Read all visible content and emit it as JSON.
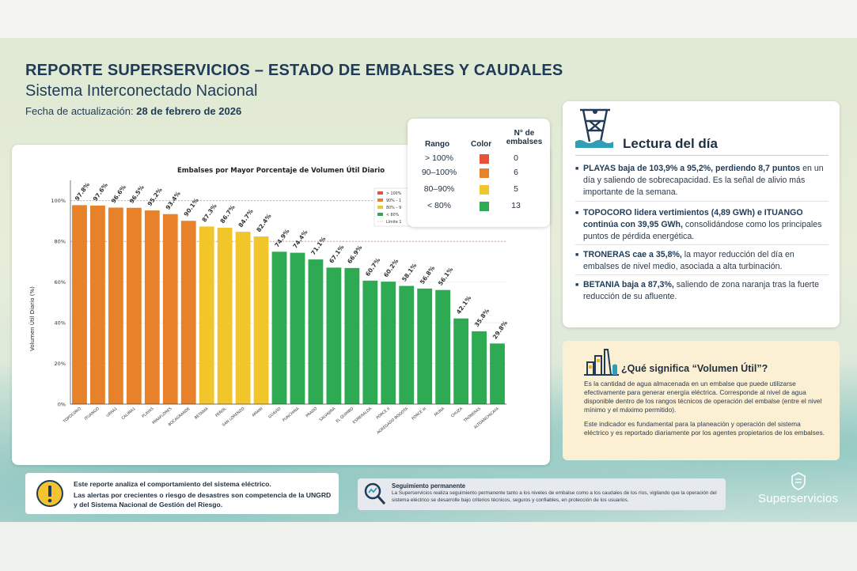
{
  "header": {
    "title": "REPORTE SUPERSERVICIOS – ESTADO DE EMBALSES Y CAUDALES",
    "subtitle": "Sistema Interconectado Nacional",
    "date_label": "Fecha de actualización:",
    "date_value": "28 de febrero de 2026"
  },
  "chart_data": {
    "type": "bar",
    "title": "Embalses por Mayor Porcentaje de Volumen Útil Diario",
    "ylabel": "Volumen Útil Diario (%)",
    "xlabel": "",
    "ylim": [
      0,
      110
    ],
    "yticks": [
      "0%",
      "20%",
      "40%",
      "60%",
      "80%",
      "100%"
    ],
    "reference_lines": [
      100,
      80
    ],
    "categories": [
      "TOPOCORO",
      "ITUANGO",
      "URRA1",
      "CALIMA1",
      "PLAYAS",
      "MIRAFLORES",
      "BOCAGRANDE",
      "BETANIA",
      "PEÑOL",
      "SAN LORENZO",
      "AMANI",
      "GUAVIO",
      "PUNCHINA",
      "PRADO",
      "SALVAJINA",
      "EL QUIMBO",
      "ESMERALDA",
      "PORCE II",
      "AGREGADO BOGOTA",
      "PORCE III",
      "MUNA",
      "CHUZA",
      "TRONERAS",
      "ALTOANCHICAYA"
    ],
    "values": [
      97.8,
      97.6,
      96.6,
      96.5,
      95.2,
      93.4,
      90.1,
      87.3,
      86.7,
      84.7,
      82.4,
      74.9,
      74.4,
      71.1,
      67.1,
      66.9,
      60.7,
      60.2,
      58.1,
      56.8,
      56.1,
      42.1,
      35.8,
      29.8
    ],
    "labels": [
      "97.8%",
      "97.6%",
      "96.6%",
      "96.5%",
      "95.2%",
      "93.4%",
      "90.1%",
      "87.3%",
      "86.7%",
      "84.7%",
      "82.4%",
      "74.9%",
      "74.4%",
      "71.1%",
      "67.1%",
      "66.9%",
      "60.7%",
      "60.2%",
      "58.1%",
      "56.8%",
      "56.1%",
      "42.1%",
      "35.8%",
      "29.8%"
    ],
    "colors": {
      "over100": "#e8503a",
      "r90_100": "#e8822a",
      "r80_90": "#f2c62a",
      "under80": "#2eaa52"
    },
    "legend_entries": [
      "> 100%",
      "90% – 1",
      "80% – 9",
      "< 80%",
      "Límite 1"
    ],
    "legend_position": "top-right"
  },
  "legend_table": {
    "headers": {
      "range": "Rango",
      "color": "Color",
      "count": "N° de embalses"
    },
    "rows": [
      {
        "range": "> 100%",
        "color": "#e8503a",
        "count": "0"
      },
      {
        "range": "90–100%",
        "color": "#e8822a",
        "count": "6"
      },
      {
        "range": "80–90%",
        "color": "#f2c62a",
        "count": "5"
      },
      {
        "range": "< 80%",
        "color": "#2eaa52",
        "count": "13"
      }
    ]
  },
  "lectura": {
    "title": "Lectura del día",
    "items": [
      {
        "bold": "PLAYAS baja de 103,9% a 95,2%, perdiendo 8,7 puntos",
        "rest": " en un día y saliendo de sobrecapacidad. Es la señal de alivio más importante de la semana."
      },
      {
        "bold": "TOPOCORO lidera vertimientos (4,89 GWh) e ITUANGO continúa con 39,95 GWh,",
        "rest": " consolidándose como los principales puntos de pérdida energética."
      },
      {
        "bold": "TRONERAS cae a 35,8%,",
        "rest": " la mayor reducción del día en embalses de nivel medio, asociada a alta turbinación."
      },
      {
        "bold": "BETANIA baja a 87,3%,",
        "rest": " saliendo de zona naranja tras la fuerte reducción de su afluente."
      }
    ]
  },
  "volumen_util": {
    "title": "¿Qué significa “Volumen Útil”?",
    "p1": "Es la cantidad de agua almacenada en un embalse que puede utilizarse efectivamente para generar energía eléctrica. Corresponde al nivel de agua disponible dentro de los rangos técnicos de operación del embalse (entre el nivel mínimo y el máximo permitido).",
    "p2": "Este indicador es fundamental para la planeación y operación del sistema eléctrico y es reportado diariamente por los agentes propietarios de los embalses."
  },
  "footer": {
    "note_line1": "Este reporte analiza el comportamiento del sistema eléctrico.",
    "note_line2": "Las alertas por crecientes o riesgo de desastres son competencia de la UNGRD y del Sistema Nacional de Gestión del Riesgo.",
    "seg_title": "Seguimiento permanente",
    "seg_text": "La Superservicios realiza seguimiento permanente tanto a los niveles de embalse como a los caudales de los ríos, vigilando que la operación del sistema eléctrico se desarrolle bajo criterios técnicos, seguros y confiables, en protección de los usuarios.",
    "logo": "Superservicios"
  }
}
